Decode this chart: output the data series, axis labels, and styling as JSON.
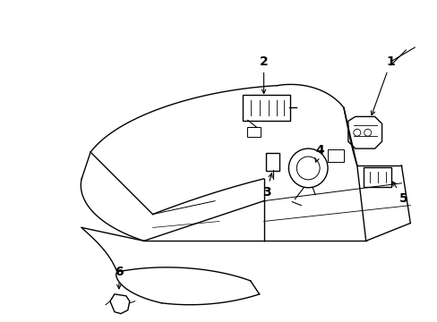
{
  "background_color": "#ffffff",
  "line_color": "#000000",
  "figure_width": 4.89,
  "figure_height": 3.6,
  "dpi": 100,
  "line_width": 1.0,
  "label_fontsize": 10
}
